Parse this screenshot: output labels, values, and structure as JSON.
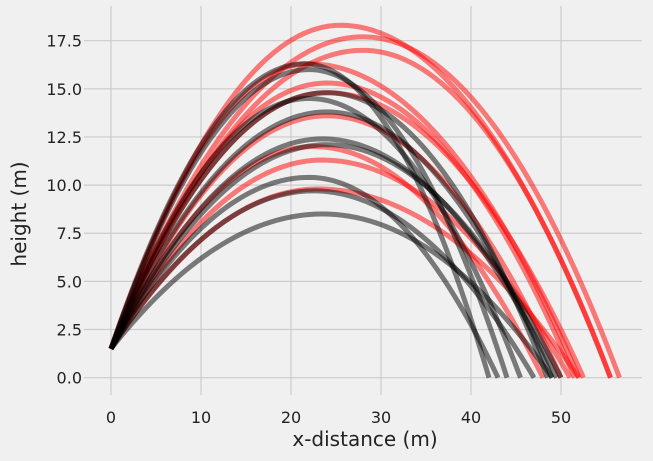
{
  "chart_data": {
    "type": "line",
    "title": "",
    "xlabel": "x-distance (m)",
    "ylabel": "height (m)",
    "xlim": [
      -3,
      59
    ],
    "ylim": [
      -0.9,
      19.3
    ],
    "xticks": [
      0,
      10,
      20,
      30,
      40,
      50
    ],
    "yticks": [
      0.0,
      2.5,
      5.0,
      7.5,
      10.0,
      12.5,
      15.0,
      17.5
    ],
    "xtick_labels": [
      "0",
      "10",
      "20",
      "30",
      "40",
      "50"
    ],
    "ytick_labels": [
      "0.0",
      "2.5",
      "5.0",
      "7.5",
      "10.0",
      "12.5",
      "15.0",
      "17.5"
    ],
    "grid": true,
    "legend": "none",
    "start_height": 1.5,
    "colors": {
      "red": "#ff0000",
      "black": "#000000",
      "background": "#f0f0f0",
      "grid": "#cbcbcb"
    },
    "series": [
      {
        "color": "red",
        "x": [
          0,
          25.5,
          55.5
        ],
        "y": [
          1.5,
          18.3,
          0
        ]
      },
      {
        "color": "red",
        "x": [
          0,
          28,
          56.5
        ],
        "y": [
          1.5,
          17.7,
          0
        ]
      },
      {
        "color": "red",
        "x": [
          0,
          28,
          55.5
        ],
        "y": [
          1.5,
          17.0,
          0
        ]
      },
      {
        "color": "red",
        "x": [
          0,
          22,
          52
        ],
        "y": [
          1.5,
          16.3,
          0
        ]
      },
      {
        "color": "red",
        "x": [
          0,
          24,
          51.5
        ],
        "y": [
          1.5,
          15.3,
          0
        ]
      },
      {
        "color": "red",
        "x": [
          0,
          24,
          52.5
        ],
        "y": [
          1.5,
          14.8,
          0
        ]
      },
      {
        "color": "red",
        "x": [
          0,
          24,
          50
        ],
        "y": [
          1.5,
          13.6,
          0
        ]
      },
      {
        "color": "red",
        "x": [
          0,
          22.5,
          48
        ],
        "y": [
          1.5,
          12.0,
          0
        ]
      },
      {
        "color": "red",
        "x": [
          0,
          23.5,
          51
        ],
        "y": [
          1.5,
          11.3,
          0
        ]
      },
      {
        "color": "red",
        "x": [
          0,
          23,
          52
        ],
        "y": [
          1.5,
          9.8,
          0
        ]
      },
      {
        "color": "black",
        "x": [
          0,
          21.5,
          42
        ],
        "y": [
          1.5,
          16.3,
          0
        ]
      },
      {
        "color": "black",
        "x": [
          0,
          22,
          44
        ],
        "y": [
          1.5,
          16.0,
          0
        ]
      },
      {
        "color": "black",
        "x": [
          0,
          22,
          45.5
        ],
        "y": [
          1.5,
          14.5,
          0
        ]
      },
      {
        "color": "black",
        "x": [
          0,
          24,
          48.5
        ],
        "y": [
          1.5,
          14.8,
          0
        ]
      },
      {
        "color": "black",
        "x": [
          0,
          24,
          49
        ],
        "y": [
          1.5,
          13.8,
          0
        ]
      },
      {
        "color": "black",
        "x": [
          0,
          23.5,
          49.5
        ],
        "y": [
          1.5,
          12.4,
          0
        ]
      },
      {
        "color": "black",
        "x": [
          0,
          24,
          50
        ],
        "y": [
          1.5,
          12.1,
          0
        ]
      },
      {
        "color": "black",
        "x": [
          0,
          22,
          43
        ],
        "y": [
          1.5,
          10.4,
          0
        ]
      },
      {
        "color": "black",
        "x": [
          0,
          22.5,
          47
        ],
        "y": [
          1.5,
          9.7,
          0
        ]
      },
      {
        "color": "black",
        "x": [
          0,
          23.5,
          49
        ],
        "y": [
          1.5,
          8.5,
          0
        ]
      }
    ]
  }
}
